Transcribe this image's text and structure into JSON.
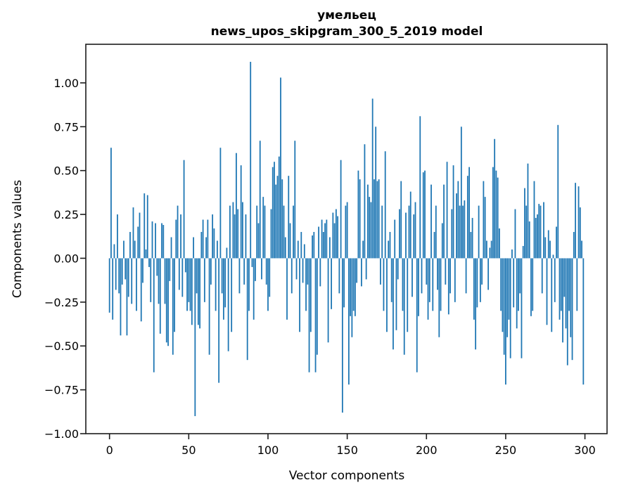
{
  "figure": {
    "background": "#ffffff",
    "spine_color": "#1c1c1c"
  },
  "chart_data": {
    "type": "bar",
    "title": "умельец",
    "subtitle": "news_upos_skipgram_300_5_2019 model",
    "xlabel": "Vector components",
    "ylabel": "Components values",
    "bar_color": "#1f77b4",
    "grid": false,
    "legend": null,
    "xlim": [
      -14.95,
      313.95
    ],
    "ylim": [
      -1.0,
      1.22
    ],
    "xticks": [
      0,
      50,
      100,
      150,
      200,
      250,
      300
    ],
    "yticks": [
      -1.0,
      -0.75,
      -0.5,
      -0.25,
      0.0,
      0.25,
      0.5,
      0.75,
      1.0
    ],
    "ytick_labels": [
      "−1.00",
      "−0.75",
      "−0.50",
      "−0.25",
      "0.00",
      "0.25",
      "0.50",
      "0.75",
      "1.00"
    ],
    "n_components": 300,
    "values": [
      -0.31,
      0.63,
      -0.35,
      0.08,
      -0.18,
      0.25,
      -0.2,
      -0.44,
      -0.15,
      0.1,
      -0.12,
      -0.44,
      -0.22,
      0.15,
      -0.26,
      0.29,
      0.1,
      -0.3,
      0.18,
      0.26,
      -0.36,
      -0.14,
      0.37,
      0.05,
      0.36,
      -0.05,
      -0.25,
      0.21,
      -0.65,
      0.2,
      -0.1,
      -0.26,
      -0.43,
      0.2,
      0.19,
      -0.26,
      -0.48,
      -0.5,
      -0.13,
      0.12,
      -0.55,
      -0.42,
      0.22,
      0.3,
      -0.18,
      0.25,
      -0.22,
      0.56,
      -0.08,
      -0.3,
      -0.25,
      -0.3,
      -0.38,
      0.12,
      -0.9,
      -0.2,
      -0.38,
      -0.4,
      0.15,
      0.22,
      -0.25,
      0.12,
      0.22,
      -0.55,
      -0.15,
      0.25,
      0.17,
      -0.3,
      0.1,
      -0.71,
      0.63,
      -0.2,
      -0.35,
      -0.28,
      0.06,
      -0.53,
      0.3,
      -0.42,
      0.32,
      0.25,
      0.6,
      0.28,
      -0.2,
      0.53,
      0.32,
      -0.15,
      0.25,
      -0.58,
      -0.3,
      1.12,
      -0.05,
      -0.35,
      -0.13,
      0.3,
      0.2,
      0.67,
      -0.12,
      0.35,
      0.3,
      -0.15,
      -0.3,
      -0.22,
      0.28,
      0.52,
      0.55,
      0.42,
      0.47,
      0.58,
      1.03,
      0.45,
      0.3,
      0.12,
      -0.35,
      0.47,
      0.2,
      -0.2,
      0.3,
      0.67,
      -0.12,
      0.1,
      -0.42,
      0.15,
      -0.14,
      0.08,
      -0.3,
      -0.15,
      -0.65,
      -0.42,
      0.13,
      0.15,
      -0.65,
      -0.55,
      0.18,
      -0.16,
      0.22,
      0.15,
      0.2,
      0.22,
      -0.48,
      0.12,
      -0.29,
      0.26,
      0.2,
      0.28,
      0.24,
      -0.2,
      0.56,
      -0.88,
      -0.28,
      0.3,
      0.32,
      -0.72,
      -0.33,
      -0.45,
      -0.3,
      -0.33,
      -0.14,
      0.5,
      0.45,
      -0.16,
      0.1,
      0.65,
      -0.12,
      0.42,
      0.35,
      0.32,
      0.91,
      0.45,
      0.75,
      0.44,
      0.45,
      -0.15,
      0.3,
      -0.3,
      0.61,
      -0.42,
      0.1,
      0.15,
      -0.25,
      -0.52,
      0.22,
      -0.41,
      -0.12,
      0.28,
      0.44,
      -0.3,
      -0.55,
      0.26,
      -0.42,
      0.3,
      0.38,
      -0.22,
      0.25,
      0.32,
      -0.65,
      -0.33,
      0.81,
      -0.2,
      0.49,
      0.5,
      -0.15,
      -0.35,
      -0.25,
      0.42,
      -0.3,
      0.15,
      0.3,
      -0.18,
      -0.45,
      -0.3,
      0.2,
      0.42,
      -0.15,
      0.55,
      -0.32,
      -0.2,
      0.28,
      0.53,
      -0.25,
      0.37,
      0.44,
      0.3,
      0.75,
      0.3,
      0.33,
      -0.2,
      0.47,
      0.52,
      0.15,
      0.23,
      -0.35,
      -0.52,
      -0.28,
      0.3,
      -0.25,
      -0.15,
      0.44,
      0.35,
      0.1,
      -0.18,
      0.06,
      0.1,
      0.52,
      0.68,
      0.5,
      0.46,
      0.17,
      -0.3,
      -0.42,
      -0.55,
      -0.72,
      -0.45,
      -0.35,
      -0.57,
      0.05,
      -0.28,
      0.28,
      -0.4,
      -0.3,
      -0.2,
      -0.57,
      0.07,
      0.4,
      0.3,
      0.54,
      0.21,
      -0.33,
      -0.3,
      0.44,
      0.23,
      0.25,
      0.31,
      0.3,
      -0.2,
      0.32,
      0.12,
      -0.38,
      0.16,
      0.1,
      -0.42,
      0.02,
      -0.25,
      0.18,
      0.76,
      -0.35,
      -0.3,
      -0.48,
      -0.22,
      -0.4,
      -0.61,
      -0.3,
      -0.45,
      -0.58,
      0.15,
      0.43,
      -0.3,
      0.41,
      0.29,
      0.1,
      -0.72
    ]
  }
}
